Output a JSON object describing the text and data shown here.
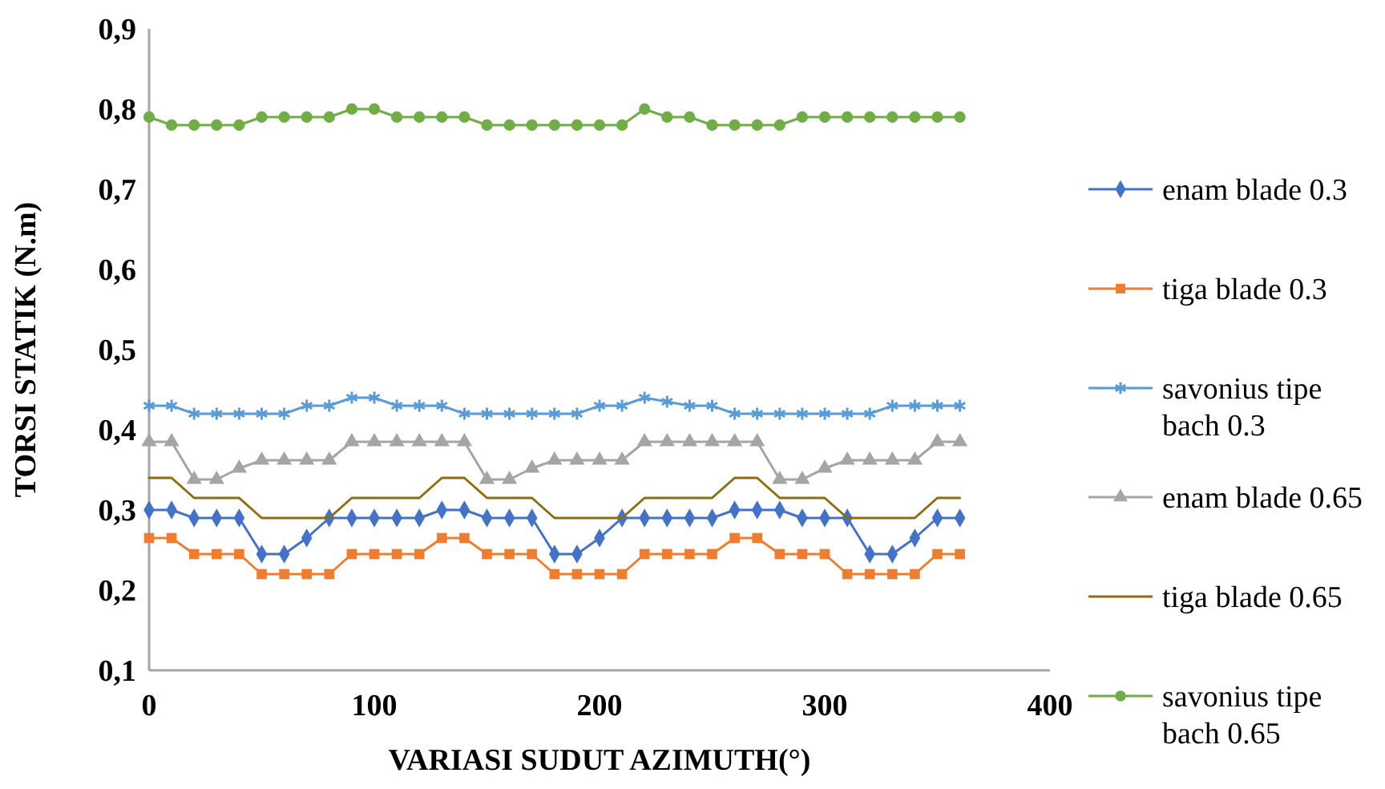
{
  "chart_data": {
    "type": "line",
    "xlabel": "VARIASI SUDUT AZIMUTH(°)",
    "ylabel": "TORSI STATIK (N.m)",
    "x": [
      0,
      10,
      20,
      30,
      40,
      50,
      60,
      70,
      80,
      90,
      100,
      110,
      120,
      130,
      140,
      150,
      160,
      170,
      180,
      190,
      200,
      210,
      220,
      230,
      240,
      250,
      260,
      270,
      280,
      290,
      300,
      310,
      320,
      330,
      340,
      350,
      360
    ],
    "xlim": [
      0,
      400
    ],
    "xticks": [
      0,
      100,
      200,
      300,
      400
    ],
    "ylim": [
      0.1,
      0.9
    ],
    "yticks": [
      {
        "value": 0.1,
        "label": "0,1"
      },
      {
        "value": 0.2,
        "label": "0,2"
      },
      {
        "value": 0.3,
        "label": "0,3"
      },
      {
        "value": 0.4,
        "label": "0,4"
      },
      {
        "value": 0.5,
        "label": "0,5"
      },
      {
        "value": 0.6,
        "label": "0,6"
      },
      {
        "value": 0.7,
        "label": "0,7"
      },
      {
        "value": 0.8,
        "label": "0,8"
      },
      {
        "value": 0.9,
        "label": "0,9"
      }
    ],
    "grid": false,
    "legend": "right",
    "line_style": "solid",
    "series": [
      {
        "name": "enam blade 0.3",
        "color": "#4472c4",
        "marker": "diamond",
        "values": [
          0.3,
          0.3,
          0.29,
          0.29,
          0.29,
          0.245,
          0.245,
          0.265,
          0.29,
          0.29,
          0.29,
          0.29,
          0.29,
          0.3,
          0.3,
          0.29,
          0.29,
          0.29,
          0.245,
          0.245,
          0.265,
          0.29,
          0.29,
          0.29,
          0.29,
          0.29,
          0.3,
          0.3,
          0.3,
          0.29,
          0.29,
          0.29,
          0.245,
          0.245,
          0.265,
          0.29,
          0.29
        ]
      },
      {
        "name": "tiga blade 0.3",
        "color": "#ed7d31",
        "marker": "square",
        "values": [
          0.265,
          0.265,
          0.245,
          0.245,
          0.245,
          0.22,
          0.22,
          0.22,
          0.22,
          0.245,
          0.245,
          0.245,
          0.245,
          0.265,
          0.265,
          0.245,
          0.245,
          0.245,
          0.22,
          0.22,
          0.22,
          0.22,
          0.245,
          0.245,
          0.245,
          0.245,
          0.265,
          0.265,
          0.245,
          0.245,
          0.245,
          0.22,
          0.22,
          0.22,
          0.22,
          0.245,
          0.245
        ]
      },
      {
        "name": "savonius tipe bach 0.3",
        "color": "#5b9bd5",
        "marker": "cross",
        "values": [
          0.43,
          0.43,
          0.42,
          0.42,
          0.42,
          0.42,
          0.42,
          0.43,
          0.43,
          0.44,
          0.44,
          0.43,
          0.43,
          0.43,
          0.42,
          0.42,
          0.42,
          0.42,
          0.42,
          0.42,
          0.43,
          0.43,
          0.44,
          0.435,
          0.43,
          0.43,
          0.42,
          0.42,
          0.42,
          0.42,
          0.42,
          0.42,
          0.42,
          0.43,
          0.43,
          0.43,
          0.43
        ]
      },
      {
        "name": "enam blade 0.65",
        "color": "#a5a5a5",
        "marker": "triangle",
        "values": [
          0.385,
          0.385,
          0.338,
          0.338,
          0.352,
          0.362,
          0.362,
          0.362,
          0.362,
          0.385,
          0.385,
          0.385,
          0.385,
          0.385,
          0.385,
          0.338,
          0.338,
          0.352,
          0.362,
          0.362,
          0.362,
          0.362,
          0.385,
          0.385,
          0.385,
          0.385,
          0.385,
          0.385,
          0.338,
          0.338,
          0.352,
          0.362,
          0.362,
          0.362,
          0.362,
          0.385,
          0.385
        ]
      },
      {
        "name": "tiga blade 0.65",
        "color": "#8c6d12",
        "marker": "none",
        "values": [
          0.34,
          0.34,
          0.315,
          0.315,
          0.315,
          0.29,
          0.29,
          0.29,
          0.29,
          0.315,
          0.315,
          0.315,
          0.315,
          0.34,
          0.34,
          0.315,
          0.315,
          0.315,
          0.29,
          0.29,
          0.29,
          0.29,
          0.315,
          0.315,
          0.315,
          0.315,
          0.34,
          0.34,
          0.315,
          0.315,
          0.315,
          0.29,
          0.29,
          0.29,
          0.29,
          0.315,
          0.315
        ]
      },
      {
        "name": "savonius tipe bach 0.65",
        "color": "#70ad47",
        "marker": "circle",
        "values": [
          0.79,
          0.78,
          0.78,
          0.78,
          0.78,
          0.79,
          0.79,
          0.79,
          0.79,
          0.8,
          0.8,
          0.79,
          0.79,
          0.79,
          0.79,
          0.78,
          0.78,
          0.78,
          0.78,
          0.78,
          0.78,
          0.78,
          0.8,
          0.79,
          0.79,
          0.78,
          0.78,
          0.78,
          0.78,
          0.79,
          0.79,
          0.79,
          0.79,
          0.79,
          0.79,
          0.79,
          0.79
        ]
      }
    ]
  }
}
